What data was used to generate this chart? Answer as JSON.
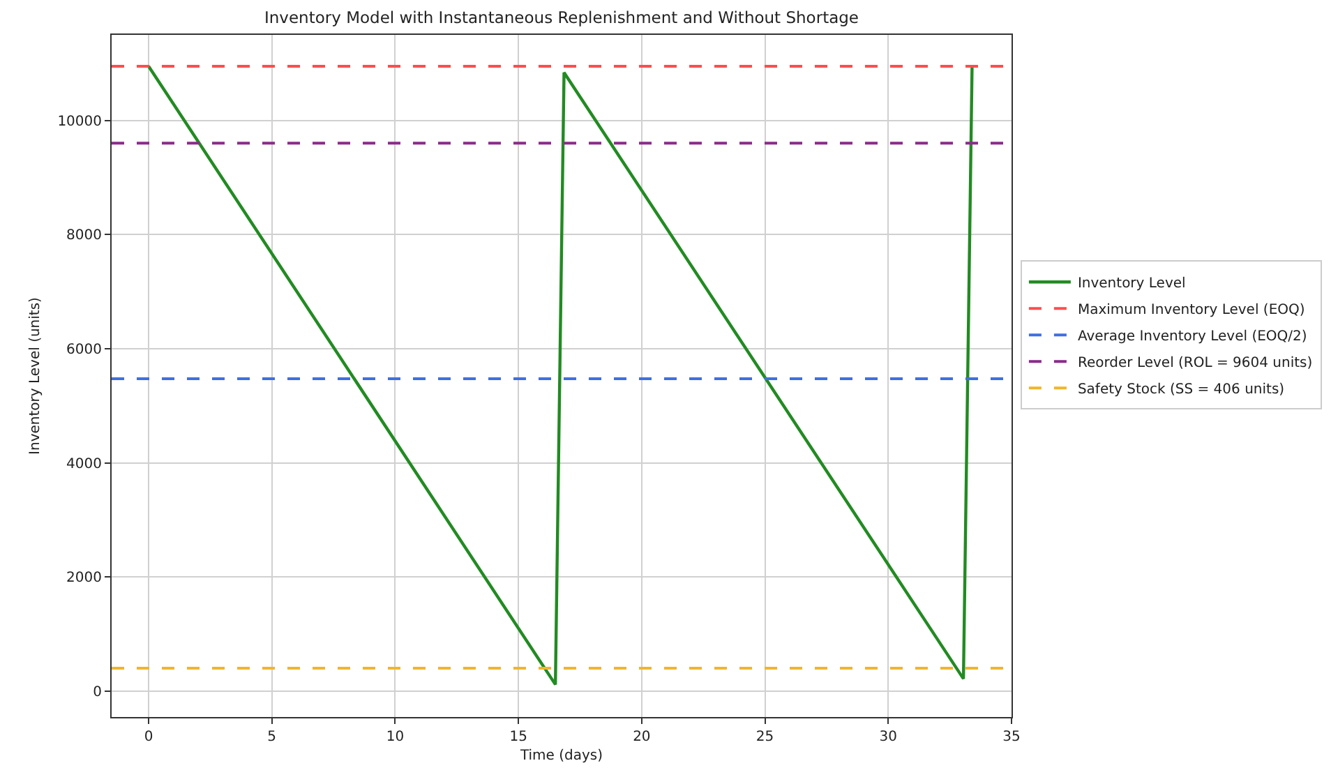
{
  "chart_data": {
    "type": "line",
    "title": "Inventory Model with Instantaneous Replenishment and Without Shortage",
    "xlabel": "Time (days)",
    "ylabel": "Inventory Level (units)",
    "series": [
      {
        "name": "Inventory Level",
        "color": "#228b22",
        "x": [
          0,
          16.5,
          16.85,
          33.05,
          33.4
        ],
        "values": [
          10950,
          120,
          10840,
          220,
          10950
        ]
      }
    ],
    "ref_lines": [
      {
        "axis": "y",
        "value": 10950,
        "label": "Maximum Inventory Level (EOQ)",
        "color": "#ff4d4d",
        "line_style": "dashed"
      },
      {
        "axis": "y",
        "value": 5475,
        "label": "Average Inventory Level (EOQ/2)",
        "color": "#3f6fe0",
        "line_style": "dashed"
      },
      {
        "axis": "y",
        "value": 9604,
        "label": "Reorder Level (ROL = 9604 units)",
        "color": "#8b2b8b",
        "line_style": "dashed"
      },
      {
        "axis": "y",
        "value": 406,
        "label": "Safety Stock (SS = 406 units)",
        "color": "#f2b52a",
        "line_style": "dashed"
      }
    ],
    "xlim": [
      -1.5,
      35
    ],
    "xticks": [
      0,
      5,
      10,
      15,
      20,
      25,
      30,
      35
    ],
    "ylim": [
      -450,
      11500
    ],
    "yticks": [
      0,
      2000,
      4000,
      6000,
      8000,
      10000
    ],
    "grid": true,
    "legend": "right",
    "line_style": "solid",
    "marker": "none"
  }
}
